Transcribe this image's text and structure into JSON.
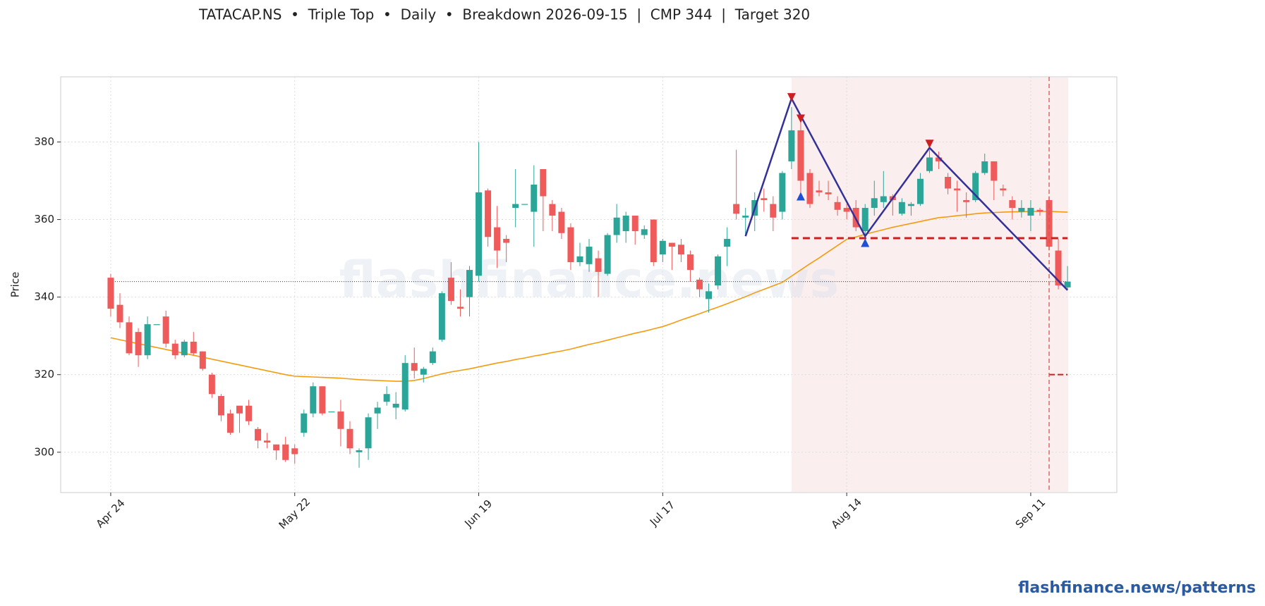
{
  "chart_data": {
    "type": "candlestick",
    "title": "TATACAP.NS  •  Triple Top  •  Daily  •  Breakdown 2026-09-15  |  CMP 344  |  Target 320",
    "y_label": "Price",
    "watermark": "flashfinance.news",
    "footer": "flashfinance.news/patterns",
    "up_color": "#2ba597",
    "down_color": "#ef5a5a",
    "grid": true,
    "ylim": [
      289.6,
      396.8
    ],
    "yticks": [
      300,
      320,
      340,
      360,
      380
    ],
    "categories": [
      "Apr 24",
      null,
      null,
      null,
      null,
      null,
      null,
      null,
      null,
      null,
      null,
      null,
      null,
      null,
      null,
      null,
      null,
      null,
      null,
      null,
      "May 22",
      null,
      null,
      null,
      null,
      null,
      null,
      null,
      null,
      null,
      null,
      null,
      null,
      null,
      null,
      null,
      null,
      null,
      null,
      null,
      "Jun 19",
      null,
      null,
      null,
      null,
      null,
      null,
      null,
      null,
      null,
      null,
      null,
      null,
      null,
      null,
      null,
      null,
      null,
      null,
      null,
      "Jul 17",
      null,
      null,
      null,
      null,
      null,
      null,
      null,
      null,
      null,
      null,
      null,
      null,
      null,
      null,
      null,
      null,
      null,
      null,
      null,
      "Aug 14",
      null,
      null,
      null,
      null,
      null,
      null,
      null,
      null,
      null,
      null,
      null,
      null,
      null,
      null,
      null,
      null,
      null,
      null,
      null,
      "Sep 11",
      null,
      null,
      null,
      null
    ],
    "open": [
      345,
      338,
      333.5,
      331,
      325,
      333,
      335,
      328,
      325,
      328.5,
      326,
      320,
      314.5,
      310,
      312,
      312,
      306,
      303,
      302,
      302,
      301,
      305,
      310,
      317,
      310.5,
      310.5,
      306,
      300,
      301,
      310,
      313,
      311.5,
      311,
      323,
      320,
      323,
      329,
      345,
      337.5,
      340,
      345.5,
      367.5,
      358,
      355,
      363,
      364,
      362,
      373,
      364,
      362,
      358,
      349,
      348.5,
      350,
      346,
      356,
      357,
      361,
      356,
      360,
      351,
      354,
      353.5,
      351,
      344.5,
      339.5,
      343,
      353,
      364,
      360.5,
      361,
      365.5,
      364,
      362,
      375,
      383,
      372,
      367.5,
      367,
      364.5,
      363,
      363,
      357,
      363,
      364.5,
      366,
      361.5,
      363.5,
      364,
      372.5,
      376,
      371,
      368,
      365,
      365,
      372,
      375,
      368,
      365,
      362,
      361,
      362.5,
      365,
      352,
      342.5
    ],
    "high": [
      346,
      341,
      335,
      332,
      335,
      333,
      336.5,
      329,
      329,
      331,
      326,
      320.5,
      315,
      311,
      312,
      313.5,
      306.5,
      305,
      302,
      304,
      302,
      311,
      318,
      317,
      310.5,
      313.5,
      308,
      301,
      310,
      313,
      317,
      315.5,
      325,
      327,
      322,
      327,
      341.5,
      349,
      342,
      348,
      380,
      368,
      363.5,
      356,
      373,
      364,
      374,
      373,
      365,
      363,
      359,
      354,
      355,
      352,
      356.5,
      364,
      362,
      361,
      358.5,
      360,
      355,
      354,
      355,
      352,
      345,
      343.5,
      351,
      358,
      378,
      363,
      367,
      368,
      366,
      372.5,
      389,
      386,
      373,
      370,
      370,
      366,
      364,
      365,
      364,
      370,
      372.5,
      366.5,
      365.5,
      364.5,
      372,
      378,
      377.5,
      372,
      370,
      367,
      372.5,
      377,
      375,
      369,
      366,
      365,
      365,
      363,
      366,
      355,
      348
    ],
    "low": [
      335,
      332,
      325,
      322,
      324,
      333,
      327,
      324,
      324.5,
      325,
      321,
      314,
      308,
      304.5,
      305,
      307,
      301,
      301,
      298,
      297.5,
      297,
      304,
      309,
      309.5,
      310.5,
      301.5,
      299.5,
      296,
      298,
      306,
      312,
      308.5,
      310.5,
      319,
      318,
      322.5,
      328.5,
      338,
      335,
      335,
      344,
      353,
      347.5,
      349,
      358,
      364,
      353,
      357,
      357,
      355,
      347,
      348,
      346.5,
      340,
      345.5,
      354,
      354,
      353.5,
      355,
      348,
      349,
      347,
      349,
      344,
      340,
      336,
      342,
      348,
      360,
      356,
      357,
      362,
      357,
      360,
      373,
      367,
      363,
      366,
      365,
      361,
      360,
      357,
      354,
      361,
      363,
      361,
      361,
      361,
      363.5,
      372,
      373,
      366.5,
      362,
      360.5,
      364.5,
      371.5,
      365,
      366,
      360,
      360.5,
      357,
      361,
      352,
      342,
      342
    ],
    "close": [
      337,
      333.5,
      325.5,
      325,
      333,
      333,
      328,
      325,
      328.5,
      325.5,
      321.5,
      315,
      309.5,
      305,
      310,
      308,
      303,
      302.5,
      300.5,
      298,
      299.5,
      310,
      317,
      310,
      310.5,
      306,
      301,
      300.5,
      309,
      311.5,
      315,
      312.5,
      323,
      321,
      321.5,
      326,
      341,
      339,
      337,
      347,
      367,
      355.5,
      352,
      354,
      364,
      364,
      369,
      366,
      361,
      356.5,
      349,
      350.5,
      353,
      346.5,
      356,
      360.5,
      361,
      357,
      357.5,
      349,
      354.5,
      353,
      351,
      347,
      342,
      341.5,
      350.5,
      355,
      361.5,
      361,
      365,
      365,
      360.5,
      372,
      383,
      370,
      364,
      367,
      366.5,
      362.5,
      362,
      358,
      363,
      365.5,
      366,
      365,
      364.5,
      364,
      370.5,
      376,
      375,
      368,
      367.5,
      364.5,
      372,
      375,
      370,
      367.5,
      363,
      363,
      363,
      362,
      353,
      343,
      344
    ],
    "moving_average": {
      "color": "#f39c12",
      "values": [
        329.5,
        329,
        328.5,
        328,
        327.5,
        327,
        326.5,
        326,
        325.5,
        325,
        324.5,
        324,
        323.5,
        323,
        322.5,
        322,
        321.5,
        321,
        320.5,
        320,
        319.6,
        319.5,
        319.4,
        319.3,
        319.2,
        319.1,
        318.9,
        318.7,
        318.6,
        318.5,
        318.4,
        318.3,
        318.3,
        318.5,
        319,
        319.6,
        320.2,
        320.7,
        321.1,
        321.5,
        322,
        322.5,
        323,
        323.4,
        323.9,
        324.3,
        324.8,
        325.2,
        325.7,
        326.1,
        326.6,
        327.2,
        327.8,
        328.3,
        328.9,
        329.5,
        330.1,
        330.7,
        331.2,
        331.8,
        332.4,
        333.2,
        334.1,
        334.9,
        335.7,
        336.6,
        337.4,
        338.3,
        339.2,
        340.1,
        341.1,
        342,
        342.9,
        343.8,
        345.4,
        347,
        348.6,
        350.1,
        351.7,
        353.3,
        354.9,
        355.5,
        356.2,
        356.8,
        357.4,
        358,
        358.5,
        359,
        359.5,
        360,
        360.5,
        360.7,
        361,
        361.2,
        361.5,
        361.7,
        361.8,
        361.9,
        362,
        362,
        362.1,
        362.1,
        362.1,
        362,
        361.9
      ]
    },
    "pattern_line": {
      "color": "#33309a",
      "x": [
        69,
        74,
        82,
        89,
        104
      ],
      "values": [
        355.7,
        391.2,
        355.7,
        378.5,
        341.8
      ]
    },
    "peaks": {
      "color": "#cc1f1f",
      "x": [
        74,
        75,
        89
      ],
      "values": [
        391.5,
        386,
        379.5
      ]
    },
    "troughs": {
      "color": "#1f4fd6",
      "x": [
        75,
        82
      ],
      "values": [
        366,
        354
      ]
    },
    "neckline": {
      "color": "#cc1f1f",
      "value": 355.2,
      "x": [
        74,
        104
      ]
    },
    "target": {
      "color": "#cc1f1f",
      "value": 320,
      "x": [
        102,
        104
      ]
    },
    "cmp": 344,
    "pattern_range": [
      74,
      104
    ],
    "breakdown_index": 102
  }
}
